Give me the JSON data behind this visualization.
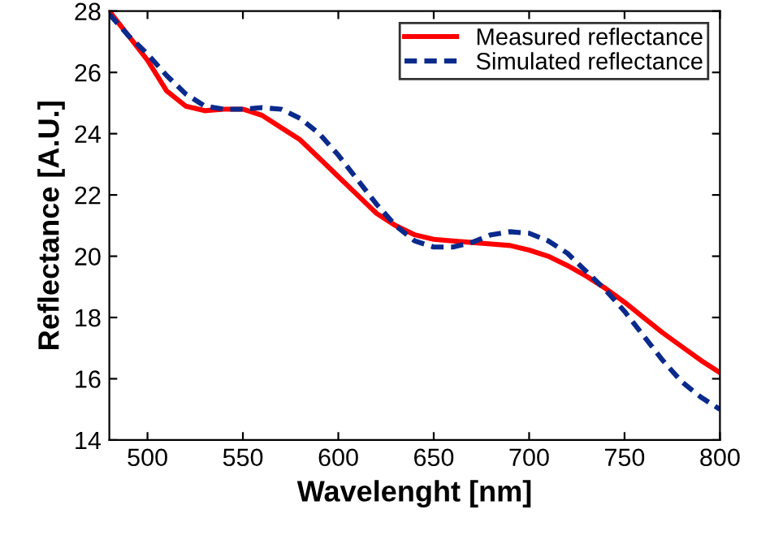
{
  "chart_data": {
    "type": "line",
    "xlabel": "Wavelenght [nm]",
    "ylabel": "Reflectance [A.U.]",
    "x": [
      480,
      490,
      500,
      510,
      520,
      530,
      540,
      550,
      560,
      570,
      580,
      590,
      600,
      610,
      620,
      630,
      640,
      650,
      660,
      670,
      680,
      690,
      700,
      710,
      720,
      730,
      740,
      750,
      760,
      770,
      780,
      790,
      800
    ],
    "series": [
      {
        "name": "Measured reflectance",
        "color": "#ff0000",
        "line_style": "solid",
        "values": [
          28,
          27.2,
          26.4,
          25.4,
          24.9,
          24.75,
          24.8,
          24.8,
          24.6,
          24.2,
          23.8,
          23.2,
          22.6,
          22.0,
          21.4,
          21.0,
          20.7,
          20.55,
          20.5,
          20.45,
          20.4,
          20.35,
          20.2,
          20.0,
          19.7,
          19.35,
          18.95,
          18.5,
          18.0,
          17.5,
          17.05,
          16.6,
          16.2
        ]
      },
      {
        "name": "Simulated reflectance",
        "color": "#0a2a8c",
        "line_style": "dashed",
        "values": [
          27.9,
          27.2,
          26.6,
          25.9,
          25.3,
          24.9,
          24.8,
          24.8,
          24.85,
          24.8,
          24.5,
          24.0,
          23.3,
          22.5,
          21.7,
          21.0,
          20.5,
          20.3,
          20.3,
          20.45,
          20.7,
          20.8,
          20.75,
          20.5,
          20.1,
          19.5,
          18.9,
          18.2,
          17.4,
          16.6,
          15.9,
          15.4,
          15.0
        ]
      }
    ],
    "xlim": [
      480,
      800
    ],
    "xticks": [
      500,
      550,
      600,
      650,
      700,
      750,
      800
    ],
    "ylim": [
      14,
      28
    ],
    "yticks": [
      14,
      16,
      18,
      20,
      22,
      24,
      26,
      28
    ],
    "grid": false,
    "legend": "top right",
    "marker": "none"
  }
}
